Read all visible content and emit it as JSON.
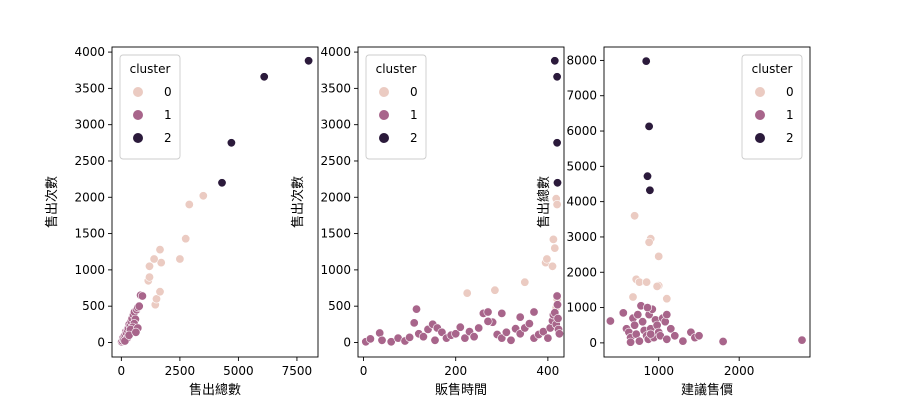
{
  "colors": {
    "cluster_0": "#ebcbc2",
    "cluster_1": "#a8658b",
    "cluster_2": "#2b1a3b"
  },
  "chart_data": [
    {
      "type": "scatter",
      "xlabel": "售出總數",
      "ylabel": "售出次數",
      "xlim": [
        -400,
        8400
      ],
      "ylim": [
        -200,
        4070
      ],
      "xticks": [
        0,
        2500,
        5000,
        7500
      ],
      "yticks": [
        0,
        500,
        1000,
        1500,
        2000,
        2500,
        3000,
        3500,
        4000
      ],
      "legend": {
        "title": "cluster",
        "placement": "upper-left",
        "labels": [
          "0",
          "1",
          "2"
        ]
      },
      "series": [
        {
          "name": "0",
          "points": [
            [
              1200,
              1050
            ],
            [
              1150,
              850
            ],
            [
              1450,
              520
            ],
            [
              1500,
              600
            ],
            [
              1650,
              700
            ],
            [
              1700,
              1100
            ],
            [
              1650,
              1280
            ],
            [
              2500,
              1150
            ],
            [
              2750,
              1430
            ],
            [
              2900,
              1900
            ],
            [
              3500,
              2020
            ],
            [
              1200,
              900
            ],
            [
              1400,
              1150
            ]
          ]
        },
        {
          "name": "1",
          "points": [
            [
              10,
              10
            ],
            [
              30,
              25
            ],
            [
              60,
              60
            ],
            [
              90,
              40
            ],
            [
              120,
              90
            ],
            [
              160,
              110
            ],
            [
              190,
              150
            ],
            [
              220,
              130
            ],
            [
              260,
              170
            ],
            [
              300,
              200
            ],
            [
              340,
              250
            ],
            [
              380,
              230
            ],
            [
              420,
              290
            ],
            [
              460,
              330
            ],
            [
              520,
              380
            ],
            [
              560,
              420
            ],
            [
              600,
              320
            ],
            [
              650,
              450
            ],
            [
              700,
              480
            ],
            [
              760,
              500
            ],
            [
              820,
              650
            ],
            [
              900,
              640
            ],
            [
              550,
              260
            ],
            [
              480,
              210
            ],
            [
              400,
              180
            ],
            [
              700,
              200
            ],
            [
              250,
              60
            ],
            [
              150,
              20
            ],
            [
              330,
              100
            ],
            [
              620,
              140
            ]
          ]
        },
        {
          "name": "2",
          "points": [
            [
              4300,
              2200
            ],
            [
              4700,
              2750
            ],
            [
              6100,
              3660
            ],
            [
              8000,
              3880
            ]
          ]
        }
      ]
    },
    {
      "type": "scatter",
      "xlabel": "販售時間",
      "ylabel": "售出次數",
      "xlim": [
        -12,
        435
      ],
      "ylim": [
        -200,
        4070
      ],
      "xticks": [
        0,
        200,
        400
      ],
      "yticks": [
        0,
        500,
        1000,
        1500,
        2000,
        2500,
        3000,
        3500,
        4000
      ],
      "legend": {
        "title": "cluster",
        "placement": "upper-left",
        "labels": [
          "0",
          "1",
          "2"
        ]
      },
      "series": [
        {
          "name": "0",
          "points": [
            [
              225,
              680
            ],
            [
              285,
              720
            ],
            [
              350,
              830
            ],
            [
              395,
              1100
            ],
            [
              398,
              1150
            ],
            [
              410,
              1050
            ],
            [
              412,
              1420
            ],
            [
              415,
              1300
            ],
            [
              418,
              1980
            ],
            [
              420,
              1900
            ],
            [
              420,
              600
            ],
            [
              418,
              480
            ]
          ]
        },
        {
          "name": "1",
          "points": [
            [
              5,
              10
            ],
            [
              15,
              50
            ],
            [
              35,
              130
            ],
            [
              40,
              30
            ],
            [
              60,
              10
            ],
            [
              75,
              60
            ],
            [
              90,
              20
            ],
            [
              100,
              70
            ],
            [
              110,
              270
            ],
            [
              115,
              460
            ],
            [
              120,
              120
            ],
            [
              130,
              80
            ],
            [
              140,
              180
            ],
            [
              150,
              250
            ],
            [
              155,
              30
            ],
            [
              160,
              200
            ],
            [
              170,
              140
            ],
            [
              180,
              60
            ],
            [
              190,
              100
            ],
            [
              200,
              120
            ],
            [
              210,
              210
            ],
            [
              220,
              60
            ],
            [
              230,
              150
            ],
            [
              240,
              80
            ],
            [
              250,
              200
            ],
            [
              260,
              400
            ],
            [
              270,
              420
            ],
            [
              280,
              280
            ],
            [
              290,
              110
            ],
            [
              300,
              60
            ],
            [
              310,
              140
            ],
            [
              320,
              30
            ],
            [
              330,
              190
            ],
            [
              340,
              120
            ],
            [
              350,
              200
            ],
            [
              360,
              260
            ],
            [
              370,
              60
            ],
            [
              380,
              110
            ],
            [
              390,
              150
            ],
            [
              400,
              60
            ],
            [
              405,
              200
            ],
            [
              410,
              300
            ],
            [
              412,
              380
            ],
            [
              415,
              410
            ],
            [
              418,
              250
            ],
            [
              420,
              640
            ],
            [
              421,
              520
            ],
            [
              422,
              330
            ],
            [
              423,
              180
            ],
            [
              425,
              120
            ],
            [
              300,
              400
            ],
            [
              340,
              350
            ],
            [
              370,
              420
            ],
            [
              270,
              290
            ]
          ]
        },
        {
          "name": "2",
          "points": [
            [
              415,
              3880
            ],
            [
              420,
              3660
            ],
            [
              420,
              2750
            ],
            [
              421,
              2200
            ]
          ]
        }
      ]
    },
    {
      "type": "scatter",
      "xlabel": "建議售價",
      "ylabel": "售出總數",
      "xlim": [
        320,
        2880
      ],
      "ylim": [
        -400,
        8380
      ],
      "xticks": [
        1000,
        2000
      ],
      "yticks": [
        0,
        1000,
        2000,
        3000,
        4000,
        5000,
        6000,
        7000,
        8000
      ],
      "legend": {
        "title": "cluster",
        "placement": "upper-right",
        "labels": [
          "0",
          "1",
          "2"
        ]
      },
      "series": [
        {
          "name": "0",
          "points": [
            [
              700,
              3600
            ],
            [
              900,
              2950
            ],
            [
              880,
              2850
            ],
            [
              1000,
              2450
            ],
            [
              720,
              1800
            ],
            [
              760,
              1720
            ],
            [
              850,
              1720
            ],
            [
              1000,
              1620
            ],
            [
              1100,
              1250
            ],
            [
              680,
              1300
            ],
            [
              980,
              1600
            ]
          ]
        },
        {
          "name": "1",
          "points": [
            [
              400,
              620
            ],
            [
              560,
              850
            ],
            [
              600,
              400
            ],
            [
              630,
              300
            ],
            [
              650,
              150
            ],
            [
              680,
              700
            ],
            [
              700,
              500
            ],
            [
              720,
              250
            ],
            [
              740,
              800
            ],
            [
              760,
              50
            ],
            [
              780,
              1050
            ],
            [
              800,
              600
            ],
            [
              820,
              350
            ],
            [
              850,
              200
            ],
            [
              870,
              100
            ],
            [
              880,
              800
            ],
            [
              900,
              400
            ],
            [
              920,
              950
            ],
            [
              940,
              150
            ],
            [
              960,
              650
            ],
            [
              980,
              500
            ],
            [
              1000,
              300
            ],
            [
              1020,
              200
            ],
            [
              1050,
              700
            ],
            [
              1080,
              600
            ],
            [
              1100,
              100
            ],
            [
              1150,
              400
            ],
            [
              1200,
              200
            ],
            [
              1300,
              50
            ],
            [
              1400,
              300
            ],
            [
              1450,
              150
            ],
            [
              1500,
              200
            ],
            [
              1800,
              40
            ],
            [
              2780,
              80
            ],
            [
              1100,
              800
            ],
            [
              860,
              1000
            ],
            [
              650,
              20
            ],
            [
              900,
              250
            ]
          ]
        },
        {
          "name": "2",
          "points": [
            [
              845,
              7980
            ],
            [
              880,
              6130
            ],
            [
              860,
              4720
            ],
            [
              890,
              4320
            ]
          ]
        }
      ]
    }
  ]
}
